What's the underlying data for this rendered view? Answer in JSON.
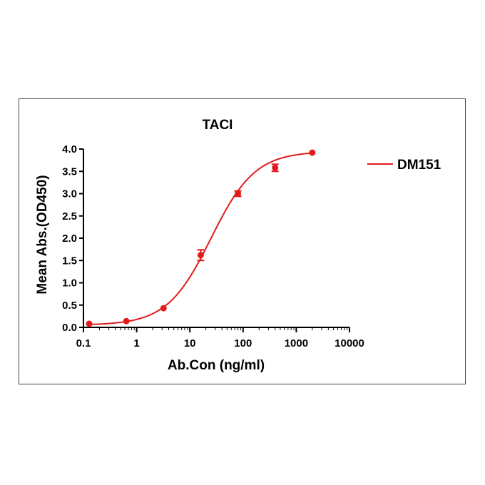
{
  "chart_data": {
    "type": "scatter",
    "title": "TACI",
    "xlabel": "Ab.Con (ng/ml)",
    "ylabel": "Mean Abs.(OD450)",
    "x_scale": "log",
    "xlim": [
      0.1,
      10000
    ],
    "ylim": [
      0,
      4
    ],
    "x_ticks": [
      "0.1",
      "1",
      "10",
      "100",
      "1000",
      "10000"
    ],
    "y_ticks": [
      "0.0",
      "0.5",
      "1.0",
      "1.5",
      "2.0",
      "2.5",
      "3.0",
      "3.5",
      "4.0"
    ],
    "legend_position": "right",
    "grid": false,
    "series": [
      {
        "name": "DM151",
        "color": "#e31a1c",
        "points": [
          {
            "x": 0.128,
            "y": 0.08,
            "err": 0.0
          },
          {
            "x": 0.64,
            "y": 0.14,
            "err": 0.0
          },
          {
            "x": 3.2,
            "y": 0.43,
            "err": 0.0
          },
          {
            "x": 16,
            "y": 1.62,
            "err": 0.12
          },
          {
            "x": 80,
            "y": 3.0,
            "err": 0.06
          },
          {
            "x": 400,
            "y": 3.58,
            "err": 0.08
          },
          {
            "x": 2000,
            "y": 3.92,
            "err": 0.0
          }
        ],
        "fit": {
          "bottom": 0.05,
          "top": 3.95,
          "ec50": 25,
          "hill": 1.05
        }
      }
    ]
  }
}
